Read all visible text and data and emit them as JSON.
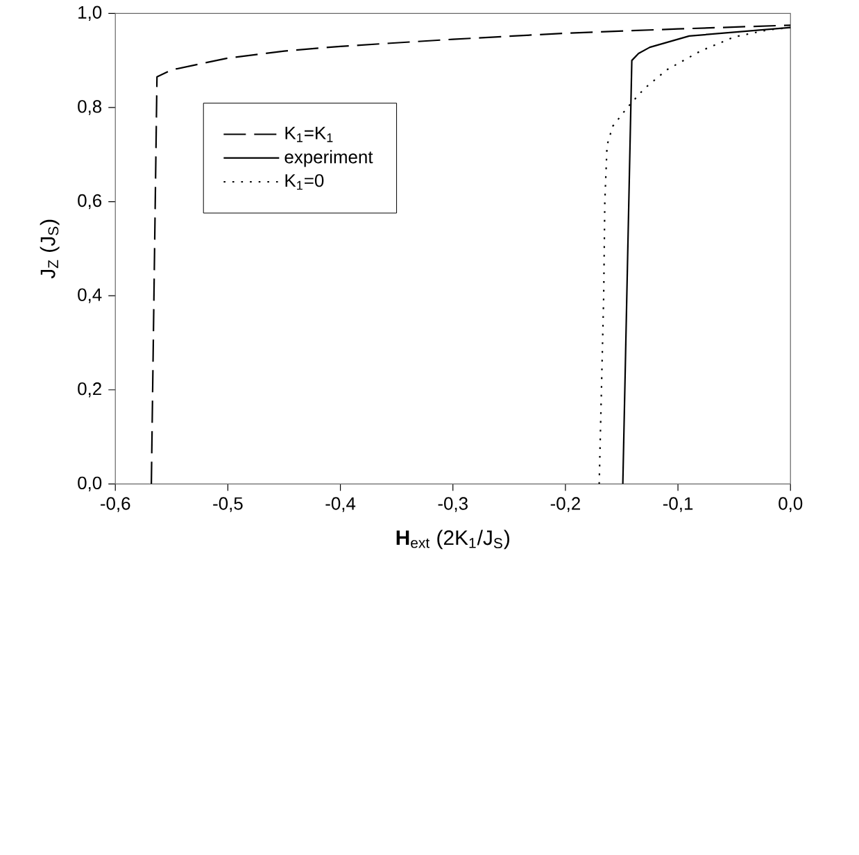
{
  "chart_data": {
    "type": "line",
    "xlabel": "**H**$_{ext}$ (2K$_{1}$/J$_{S}$)",
    "ylabel": "J$_{Z}$ (J$_{S}$)",
    "xlim": [
      -0.6,
      0.0
    ],
    "ylim": [
      0.0,
      1.0
    ],
    "xticks": [
      {
        "value": -0.6,
        "label": "-0,6"
      },
      {
        "value": -0.5,
        "label": "-0,5"
      },
      {
        "value": -0.4,
        "label": "-0,4"
      },
      {
        "value": -0.3,
        "label": "-0,3"
      },
      {
        "value": -0.2,
        "label": "-0,2"
      },
      {
        "value": -0.1,
        "label": "-0,1"
      },
      {
        "value": 0.0,
        "label": "0,0"
      }
    ],
    "yticks": [
      {
        "value": 0.0,
        "label": "0,0"
      },
      {
        "value": 0.2,
        "label": "0,2"
      },
      {
        "value": 0.4,
        "label": "0,4"
      },
      {
        "value": 0.6,
        "label": "0,6"
      },
      {
        "value": 0.8,
        "label": "0,8"
      },
      {
        "value": 1.0,
        "label": "1,0"
      }
    ],
    "grid": false,
    "legend": "top left",
    "marker": "none",
    "series": [
      {
        "name": "K$_{1}$=K$_{1}$",
        "color": "#000000",
        "line_style": "dashed",
        "x": [
          -0.568,
          -0.563,
          -0.55,
          -0.5,
          -0.45,
          -0.4,
          -0.3,
          -0.2,
          -0.1,
          0.0
        ],
        "values": [
          0.0,
          0.865,
          0.88,
          0.905,
          0.92,
          0.93,
          0.945,
          0.958,
          0.967,
          0.975
        ]
      },
      {
        "name": "experiment",
        "color": "#000000",
        "line_style": "solid",
        "x": [
          -0.149,
          -0.141,
          -0.135,
          -0.125,
          -0.09,
          -0.05,
          0.0
        ],
        "values": [
          0.0,
          0.9,
          0.915,
          0.928,
          0.952,
          0.96,
          0.97
        ]
      },
      {
        "name": "K$_{1}$=0",
        "color": "#000000",
        "line_style": "dotted",
        "x": [
          -0.17,
          -0.168,
          -0.166,
          -0.165,
          -0.163,
          -0.158,
          -0.145,
          -0.13,
          -0.11,
          -0.08,
          -0.05,
          -0.02,
          0.0
        ],
        "values": [
          0.0,
          0.2,
          0.4,
          0.6,
          0.72,
          0.76,
          0.8,
          0.84,
          0.88,
          0.92,
          0.95,
          0.965,
          0.97
        ]
      }
    ]
  }
}
